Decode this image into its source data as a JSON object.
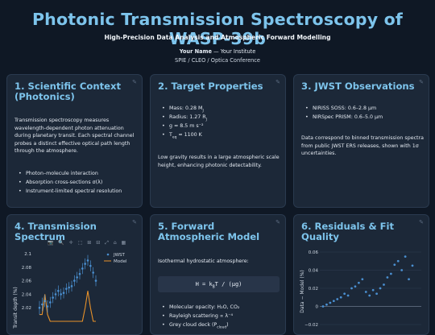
{
  "header": {
    "title": "Photonic Transmission Spectroscopy of WASP-39b",
    "subtitle": "High-Precision Data Analysis and Atmospheric Forward Modelling",
    "author_name": "Your Name",
    "author_sep": " — ",
    "author_inst": "Your Institute",
    "conference": "SPIE / CLEO / Optica Conference"
  },
  "panels": {
    "context": {
      "title": "1. Scientific Context (Photonics)",
      "body": "Transmission spectroscopy measures wavelength-dependent photon attenuation during planetary transit. Each spectral channel probes a distinct effective optical path length through the atmosphere.",
      "bullets": [
        "Photon–molecule interaction",
        "Absorption cross-sections σ(λ)",
        "Instrument-limited spectral resolution"
      ]
    },
    "target": {
      "title": "2. Target Properties",
      "bullets": [
        "Mass: 0.28 M",
        "Radius: 1.27 R",
        "g ≈ 8.5 m s⁻²",
        "T ≈ 1100 K"
      ],
      "bullet_subs": [
        "J",
        "J",
        "",
        "eq"
      ],
      "body": "Low gravity results in a large atmospheric scale height, enhancing photonic detectability."
    },
    "jwst": {
      "title": "3. JWST Observations",
      "bullets": [
        "NIRISS SOSS: 0.6–2.8 μm",
        "NIRSpec PRISM: 0.6–5.0 μm"
      ],
      "body": "Data correspond to binned transmission spectra from public JWST ERS releases, shown with 1σ uncertainties."
    },
    "spectrum": {
      "title": "4. Transmission Spectrum"
    },
    "forward": {
      "title": "5. Forward Atmospheric Model",
      "body": "Isothermal hydrostatic atmosphere:",
      "equation": "H = k",
      "equation_sub": "B",
      "equation_rest": "T / (μg)",
      "bullets": [
        "Molecular opacity: H₂O, CO₂",
        "Rayleigh scattering ∝ λ⁻⁴",
        "Grey cloud deck (P"
      ],
      "bullet3_sub": "cloud",
      "bullet3_end": ")"
    },
    "residuals": {
      "title": "6. Residuals & Fit Quality"
    }
  },
  "chart_data": [
    {
      "type": "line",
      "title": "",
      "ylabel": "Transit depth (%)",
      "xlabel": "",
      "ylim": [
        2.0,
        2.1
      ],
      "yticks": [
        "2.1",
        "2.08",
        "2.06",
        "2.04",
        "2.02"
      ],
      "legend_position": "top-right",
      "series": [
        {
          "name": "JWST",
          "style": "points-with-errorbars",
          "color": "#4a8fd0",
          "values": [
            2.02,
            2.025,
            2.03,
            2.022,
            2.028,
            2.035,
            2.04,
            2.045,
            2.04,
            2.042,
            2.048,
            2.05,
            2.052,
            2.06,
            2.065,
            2.07,
            2.078,
            2.085,
            2.09,
            2.082,
            2.072,
            2.06
          ],
          "errors": [
            0.01,
            0.01,
            0.009,
            0.009,
            0.008,
            0.008,
            0.008,
            0.008,
            0.008,
            0.008,
            0.008,
            0.008,
            0.008,
            0.008,
            0.008,
            0.008,
            0.008,
            0.008,
            0.008,
            0.008,
            0.008,
            0.008
          ]
        },
        {
          "name": "Model",
          "style": "line",
          "color": "#e8922a",
          "values": [
            2.01,
            2.01,
            2.04,
            2.01,
            2.0,
            2.0,
            2.0,
            2.0,
            2.0,
            2.0,
            2.0,
            2.0,
            2.0,
            2.0,
            2.0,
            2.0,
            2.0,
            2.02,
            2.045,
            2.02,
            2.0,
            2.0
          ]
        }
      ]
    },
    {
      "type": "scatter",
      "title": "",
      "ylabel": "Data − Model (%)",
      "xlabel": "",
      "ylim": [
        -0.02,
        0.06
      ],
      "yticks": [
        "0.06",
        "0.04",
        "0.02",
        "0",
        "−0.02"
      ],
      "series": [
        {
          "color": "#4a8fd0",
          "values": [
            0.0,
            0.002,
            0.004,
            0.006,
            0.008,
            0.01,
            0.014,
            0.012,
            0.02,
            0.022,
            0.026,
            0.03,
            0.016,
            0.012,
            0.018,
            0.014,
            0.02,
            0.024,
            0.032,
            0.036,
            0.046,
            0.05,
            0.04,
            0.055,
            0.03,
            0.045
          ]
        }
      ]
    }
  ],
  "icons": {
    "pencil": "✎",
    "toolbar": "📷 🔍 ✛ ⬚ ⊞ ⊟ ⤢ ⌂ ▦"
  }
}
